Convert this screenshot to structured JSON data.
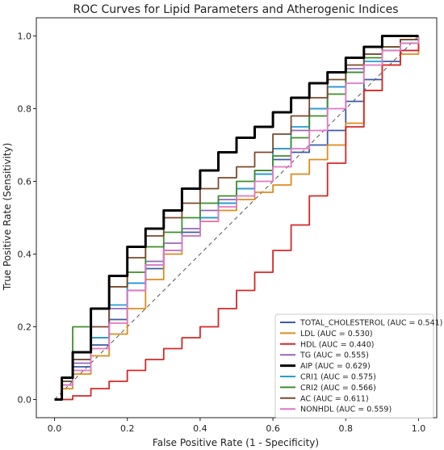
{
  "chart_data": {
    "type": "line",
    "title": "ROC Curves for Lipid Parameters and Atherogenic Indices",
    "xlabel": "False Positive Rate (1 - Specificity)",
    "ylabel": "True Positive Rate (Sensitivity)",
    "xlim": [
      -0.05,
      1.05
    ],
    "ylim": [
      -0.05,
      1.05
    ],
    "xticks": [
      "0.0",
      "0.2",
      "0.4",
      "0.6",
      "0.8",
      "1.0"
    ],
    "yticks": [
      "0.0",
      "0.2",
      "0.4",
      "0.6",
      "0.8",
      "1.0"
    ],
    "grid": false,
    "legend_position": "lower right",
    "reference_line": {
      "x": [
        0,
        1
      ],
      "y": [
        0,
        1
      ],
      "style": "dashed",
      "color": "#555555"
    },
    "series": [
      {
        "name": "TOTAL_CHOLESTEROL (AUC = 0.541)",
        "color": "#3b5ba6",
        "x": [
          0,
          0.02,
          0.05,
          0.1,
          0.15,
          0.2,
          0.25,
          0.3,
          0.35,
          0.4,
          0.45,
          0.5,
          0.55,
          0.6,
          0.65,
          0.7,
          0.75,
          0.8,
          0.85,
          0.9,
          0.95,
          1.0
        ],
        "y": [
          0,
          0.04,
          0.09,
          0.15,
          0.22,
          0.3,
          0.36,
          0.41,
          0.46,
          0.5,
          0.54,
          0.58,
          0.62,
          0.66,
          0.68,
          0.7,
          0.74,
          0.82,
          0.88,
          0.93,
          0.96,
          1.0
        ]
      },
      {
        "name": "LDL (AUC = 0.530)",
        "color": "#e08b1a",
        "x": [
          0,
          0.02,
          0.05,
          0.1,
          0.15,
          0.2,
          0.25,
          0.3,
          0.35,
          0.4,
          0.45,
          0.5,
          0.55,
          0.6,
          0.65,
          0.7,
          0.75,
          0.8,
          0.85,
          0.9,
          0.95,
          1.0
        ],
        "y": [
          0,
          0.03,
          0.07,
          0.12,
          0.18,
          0.25,
          0.33,
          0.4,
          0.45,
          0.49,
          0.52,
          0.55,
          0.57,
          0.59,
          0.62,
          0.66,
          0.7,
          0.76,
          0.85,
          0.92,
          0.95,
          1.0
        ]
      },
      {
        "name": "HDL (AUC = 0.440)",
        "color": "#d62728",
        "x": [
          0,
          0.05,
          0.1,
          0.15,
          0.2,
          0.25,
          0.3,
          0.35,
          0.4,
          0.45,
          0.5,
          0.55,
          0.6,
          0.65,
          0.7,
          0.75,
          0.8,
          0.85,
          0.9,
          0.95,
          1.0
        ],
        "y": [
          0,
          0.01,
          0.03,
          0.05,
          0.08,
          0.11,
          0.14,
          0.17,
          0.2,
          0.25,
          0.3,
          0.35,
          0.41,
          0.48,
          0.56,
          0.65,
          0.75,
          0.85,
          0.92,
          0.96,
          1.0
        ]
      },
      {
        "name": "TG (AUC = 0.555)",
        "color": "#9467bd",
        "x": [
          0,
          0.02,
          0.05,
          0.1,
          0.15,
          0.2,
          0.25,
          0.3,
          0.35,
          0.4,
          0.45,
          0.5,
          0.55,
          0.6,
          0.65,
          0.7,
          0.75,
          0.8,
          0.85,
          0.9,
          0.95,
          1.0
        ],
        "y": [
          0,
          0.05,
          0.1,
          0.17,
          0.25,
          0.32,
          0.38,
          0.43,
          0.47,
          0.52,
          0.55,
          0.58,
          0.63,
          0.69,
          0.74,
          0.8,
          0.86,
          0.91,
          0.95,
          0.97,
          0.99,
          1.0
        ]
      },
      {
        "name": "AIP (AUC = 0.629)",
        "color": "#000000",
        "x": [
          0,
          0.02,
          0.05,
          0.1,
          0.15,
          0.2,
          0.25,
          0.3,
          0.35,
          0.4,
          0.45,
          0.5,
          0.55,
          0.6,
          0.65,
          0.7,
          0.75,
          0.8,
          0.85,
          0.9,
          0.95,
          1.0
        ],
        "y": [
          0,
          0.06,
          0.13,
          0.25,
          0.34,
          0.42,
          0.47,
          0.52,
          0.58,
          0.63,
          0.68,
          0.72,
          0.75,
          0.79,
          0.83,
          0.87,
          0.9,
          0.94,
          0.97,
          1.0,
          1.0,
          1.0
        ]
      },
      {
        "name": "CRI1 (AUC = 0.575)",
        "color": "#1f9fd6",
        "x": [
          0,
          0.02,
          0.05,
          0.1,
          0.15,
          0.2,
          0.25,
          0.3,
          0.35,
          0.4,
          0.45,
          0.5,
          0.55,
          0.6,
          0.65,
          0.7,
          0.75,
          0.8,
          0.85,
          0.9,
          0.95,
          1.0
        ],
        "y": [
          0,
          0.05,
          0.11,
          0.17,
          0.26,
          0.32,
          0.37,
          0.41,
          0.45,
          0.5,
          0.54,
          0.58,
          0.62,
          0.69,
          0.75,
          0.8,
          0.86,
          0.9,
          0.93,
          0.96,
          0.98,
          1.0
        ]
      },
      {
        "name": "CRI2 (AUC = 0.566)",
        "color": "#3c8f2a",
        "x": [
          0,
          0.02,
          0.05,
          0.1,
          0.15,
          0.2,
          0.25,
          0.3,
          0.35,
          0.4,
          0.45,
          0.5,
          0.55,
          0.6,
          0.65,
          0.7,
          0.75,
          0.8,
          0.85,
          0.9,
          0.95,
          1.0
        ],
        "y": [
          0,
          0.06,
          0.2,
          0.25,
          0.31,
          0.35,
          0.42,
          0.46,
          0.5,
          0.54,
          0.56,
          0.6,
          0.63,
          0.67,
          0.72,
          0.78,
          0.84,
          0.9,
          0.94,
          0.97,
          0.99,
          1.0
        ]
      },
      {
        "name": "AC (AUC = 0.611)",
        "color": "#7b4a2b",
        "x": [
          0,
          0.02,
          0.05,
          0.1,
          0.15,
          0.2,
          0.25,
          0.3,
          0.35,
          0.4,
          0.45,
          0.5,
          0.55,
          0.6,
          0.65,
          0.7,
          0.75,
          0.8,
          0.85,
          0.9,
          0.95,
          1.0
        ],
        "y": [
          0,
          0.05,
          0.11,
          0.2,
          0.31,
          0.39,
          0.45,
          0.5,
          0.54,
          0.58,
          0.61,
          0.64,
          0.68,
          0.73,
          0.78,
          0.83,
          0.88,
          0.92,
          0.95,
          0.97,
          0.99,
          1.0
        ]
      },
      {
        "name": "NONHDL (AUC = 0.559)",
        "color": "#e377c2",
        "x": [
          0,
          0.02,
          0.05,
          0.1,
          0.15,
          0.2,
          0.25,
          0.3,
          0.35,
          0.4,
          0.45,
          0.5,
          0.55,
          0.6,
          0.65,
          0.7,
          0.75,
          0.8,
          0.85,
          0.9,
          0.95,
          1.0
        ],
        "y": [
          0,
          0.04,
          0.08,
          0.14,
          0.21,
          0.3,
          0.37,
          0.41,
          0.45,
          0.49,
          0.53,
          0.56,
          0.6,
          0.64,
          0.69,
          0.74,
          0.8,
          0.87,
          0.92,
          0.96,
          0.98,
          1.0
        ]
      }
    ]
  }
}
